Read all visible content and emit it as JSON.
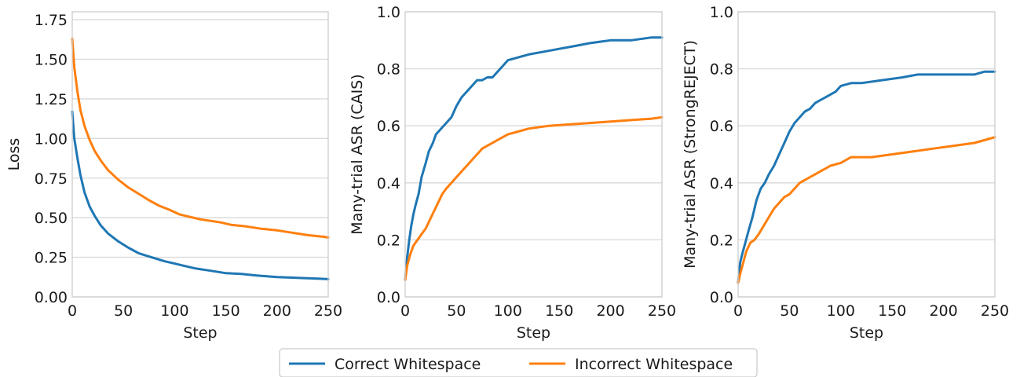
{
  "colors": {
    "correct": "#1f77b4",
    "incorrect": "#ff7f0e"
  },
  "legend": [
    {
      "label": "Correct Whitespace",
      "color": "#1f77b4"
    },
    {
      "label": "Incorrect Whitespace",
      "color": "#ff7f0e"
    }
  ],
  "chart_data": [
    {
      "type": "line",
      "title": "",
      "xlabel": "Step",
      "ylabel": "Loss",
      "xlim": [
        0,
        250
      ],
      "ylim": [
        0,
        1.8
      ],
      "xticks": [
        0,
        50,
        100,
        150,
        200,
        250
      ],
      "yticks": [
        0.0,
        0.25,
        0.5,
        0.75,
        1.0,
        1.25,
        1.5,
        1.75
      ],
      "ytick_labels": [
        "0.00",
        "0.25",
        "0.50",
        "0.75",
        "1.00",
        "1.25",
        "1.50",
        "1.75"
      ],
      "grid": "horizontal",
      "series": [
        {
          "name": "Correct Whitespace",
          "x": [
            0,
            2,
            5,
            8,
            12,
            17,
            22,
            28,
            35,
            45,
            55,
            65,
            70,
            80,
            90,
            100,
            110,
            120,
            130,
            140,
            150,
            165,
            180,
            200,
            220,
            240,
            250
          ],
          "y": [
            1.17,
            1.0,
            0.88,
            0.77,
            0.66,
            0.57,
            0.51,
            0.45,
            0.4,
            0.35,
            0.31,
            0.275,
            0.265,
            0.245,
            0.225,
            0.21,
            0.195,
            0.18,
            0.17,
            0.16,
            0.15,
            0.145,
            0.135,
            0.125,
            0.12,
            0.115,
            0.112
          ]
        },
        {
          "name": "Incorrect Whitespace",
          "x": [
            0,
            2,
            5,
            8,
            12,
            17,
            22,
            28,
            35,
            45,
            55,
            65,
            75,
            85,
            95,
            105,
            115,
            125,
            135,
            145,
            155,
            170,
            185,
            200,
            215,
            230,
            245,
            250
          ],
          "y": [
            1.63,
            1.45,
            1.3,
            1.18,
            1.08,
            0.99,
            0.92,
            0.86,
            0.8,
            0.74,
            0.69,
            0.65,
            0.61,
            0.575,
            0.55,
            0.52,
            0.505,
            0.49,
            0.48,
            0.47,
            0.455,
            0.445,
            0.43,
            0.42,
            0.405,
            0.39,
            0.38,
            0.375
          ]
        }
      ]
    },
    {
      "type": "line",
      "title": "",
      "xlabel": "Step",
      "ylabel": "Many-trial ASR (CAIS)",
      "xlim": [
        0,
        250
      ],
      "ylim": [
        0,
        1.0
      ],
      "xticks": [
        0,
        50,
        100,
        150,
        200,
        250
      ],
      "yticks": [
        0.0,
        0.2,
        0.4,
        0.6,
        0.8,
        1.0
      ],
      "ytick_labels": [
        "0.0",
        "0.2",
        "0.4",
        "0.6",
        "0.8",
        "1.0"
      ],
      "grid": "horizontal",
      "series": [
        {
          "name": "Correct Whitespace",
          "x": [
            0,
            2,
            4,
            6,
            8,
            10,
            13,
            16,
            20,
            23,
            27,
            30,
            35,
            40,
            45,
            50,
            55,
            60,
            65,
            70,
            75,
            80,
            85,
            90,
            95,
            100,
            110,
            120,
            135,
            150,
            165,
            180,
            200,
            220,
            240,
            250
          ],
          "y": [
            0.06,
            0.14,
            0.2,
            0.25,
            0.29,
            0.32,
            0.36,
            0.42,
            0.47,
            0.51,
            0.54,
            0.57,
            0.59,
            0.61,
            0.63,
            0.67,
            0.7,
            0.72,
            0.74,
            0.76,
            0.76,
            0.77,
            0.77,
            0.79,
            0.81,
            0.83,
            0.84,
            0.85,
            0.86,
            0.87,
            0.88,
            0.89,
            0.9,
            0.9,
            0.91,
            0.91
          ]
        },
        {
          "name": "Incorrect Whitespace",
          "x": [
            0,
            2,
            5,
            8,
            12,
            16,
            20,
            24,
            28,
            32,
            36,
            40,
            45,
            50,
            55,
            60,
            65,
            70,
            75,
            80,
            90,
            100,
            110,
            120,
            140,
            160,
            180,
            200,
            220,
            240,
            250
          ],
          "y": [
            0.06,
            0.11,
            0.15,
            0.18,
            0.2,
            0.22,
            0.24,
            0.27,
            0.3,
            0.33,
            0.36,
            0.38,
            0.4,
            0.42,
            0.44,
            0.46,
            0.48,
            0.5,
            0.52,
            0.53,
            0.55,
            0.57,
            0.58,
            0.59,
            0.6,
            0.605,
            0.61,
            0.615,
            0.62,
            0.625,
            0.63
          ]
        }
      ]
    },
    {
      "type": "line",
      "title": "",
      "xlabel": "Step",
      "ylabel": "Many-trial ASR (StrongREJECT)",
      "xlim": [
        0,
        250
      ],
      "ylim": [
        0,
        1.0
      ],
      "xticks": [
        0,
        50,
        100,
        150,
        200,
        250
      ],
      "yticks": [
        0.0,
        0.2,
        0.4,
        0.6,
        0.8,
        1.0
      ],
      "ytick_labels": [
        "0.0",
        "0.2",
        "0.4",
        "0.6",
        "0.8",
        "1.0"
      ],
      "grid": "horizontal",
      "series": [
        {
          "name": "Correct Whitespace",
          "x": [
            0,
            2,
            4,
            7,
            10,
            14,
            18,
            22,
            26,
            30,
            35,
            40,
            45,
            50,
            55,
            60,
            65,
            70,
            75,
            80,
            85,
            90,
            95,
            100,
            110,
            120,
            140,
            160,
            175,
            200,
            230,
            240,
            250
          ],
          "y": [
            0.05,
            0.12,
            0.15,
            0.19,
            0.23,
            0.28,
            0.34,
            0.38,
            0.4,
            0.43,
            0.46,
            0.5,
            0.54,
            0.58,
            0.61,
            0.63,
            0.65,
            0.66,
            0.68,
            0.69,
            0.7,
            0.71,
            0.72,
            0.74,
            0.75,
            0.75,
            0.76,
            0.77,
            0.78,
            0.78,
            0.78,
            0.79,
            0.79
          ]
        },
        {
          "name": "Incorrect Whitespace",
          "x": [
            0,
            2,
            5,
            8,
            12,
            16,
            20,
            25,
            30,
            35,
            40,
            45,
            50,
            55,
            60,
            65,
            70,
            75,
            80,
            90,
            100,
            110,
            130,
            150,
            170,
            190,
            210,
            230,
            245,
            250
          ],
          "y": [
            0.05,
            0.08,
            0.12,
            0.16,
            0.19,
            0.2,
            0.22,
            0.25,
            0.28,
            0.31,
            0.33,
            0.35,
            0.36,
            0.38,
            0.4,
            0.41,
            0.42,
            0.43,
            0.44,
            0.46,
            0.47,
            0.49,
            0.49,
            0.5,
            0.51,
            0.52,
            0.53,
            0.54,
            0.555,
            0.56
          ]
        }
      ]
    }
  ]
}
